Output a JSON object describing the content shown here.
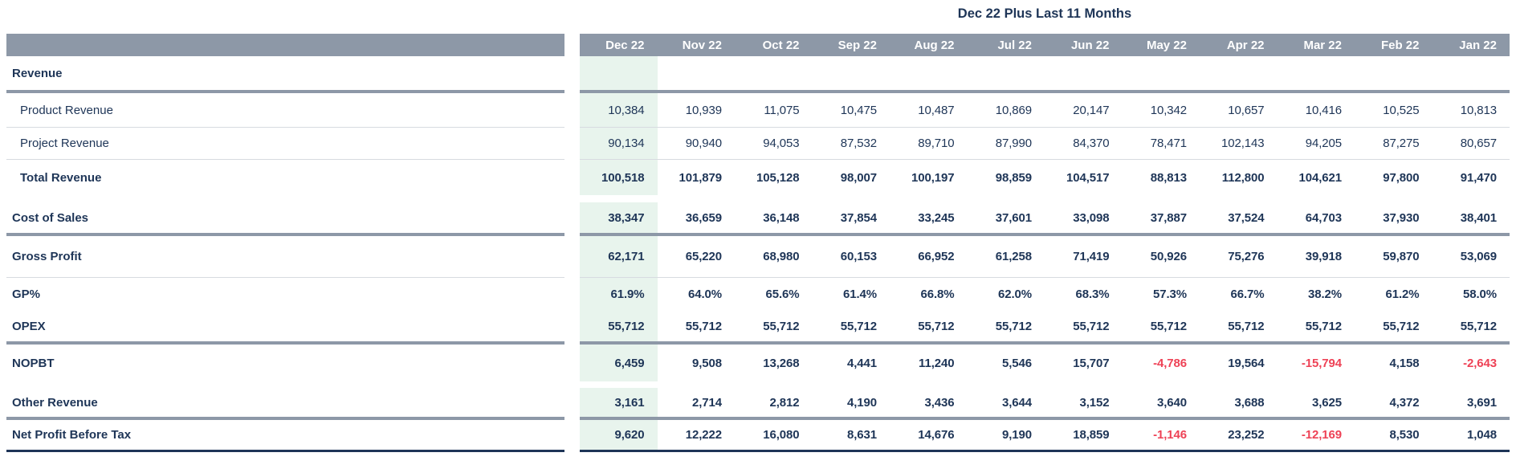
{
  "title": "Dec 22 Plus Last 11 Months",
  "columns": [
    "Dec 22",
    "Nov 22",
    "Oct 22",
    "Sep 22",
    "Aug 22",
    "Jul 22",
    "Jun 22",
    "May 22",
    "Apr 22",
    "Mar 22",
    "Feb 22",
    "Jan 22"
  ],
  "rows": [
    {
      "id": "revenue",
      "label": "Revenue",
      "style": "section",
      "border": "thick",
      "values": [
        "",
        "",
        "",
        "",
        "",
        "",
        "",
        "",
        "",
        "",
        "",
        ""
      ]
    },
    {
      "id": "product-revenue",
      "label": "Product Revenue",
      "style": "detail",
      "border": "thin",
      "values": [
        "10,384",
        "10,939",
        "11,075",
        "10,475",
        "10,487",
        "10,869",
        "20,147",
        "10,342",
        "10,657",
        "10,416",
        "10,525",
        "10,813"
      ]
    },
    {
      "id": "project-revenue",
      "label": "Project Revenue",
      "style": "detail",
      "border": "thin",
      "values": [
        "90,134",
        "90,940",
        "94,053",
        "87,532",
        "89,710",
        "87,990",
        "84,370",
        "78,471",
        "102,143",
        "94,205",
        "87,275",
        "80,657"
      ]
    },
    {
      "id": "total-revenue",
      "label": "Total Revenue",
      "style": "total-indent",
      "border": "none",
      "values": [
        "100,518",
        "101,879",
        "105,128",
        "98,007",
        "100,197",
        "98,859",
        "104,517",
        "88,813",
        "112,800",
        "104,621",
        "97,800",
        "91,470"
      ]
    },
    {
      "id": "cost-of-sales",
      "label": "Cost of Sales",
      "style": "section-values",
      "border": "thick",
      "values": [
        "38,347",
        "36,659",
        "36,148",
        "37,854",
        "33,245",
        "37,601",
        "33,098",
        "37,887",
        "37,524",
        "64,703",
        "37,930",
        "38,401"
      ]
    },
    {
      "id": "gross-profit",
      "label": "Gross Profit",
      "style": "section-values",
      "border": "thin",
      "values": [
        "62,171",
        "65,220",
        "68,980",
        "60,153",
        "66,952",
        "61,258",
        "71,419",
        "50,926",
        "75,276",
        "39,918",
        "59,870",
        "53,069"
      ]
    },
    {
      "id": "gp-percent",
      "label": "GP%",
      "style": "section-values",
      "border": "none",
      "values": [
        "61.9%",
        "64.0%",
        "65.6%",
        "61.4%",
        "66.8%",
        "62.0%",
        "68.3%",
        "57.3%",
        "66.7%",
        "38.2%",
        "61.2%",
        "58.0%"
      ]
    },
    {
      "id": "opex",
      "label": "OPEX",
      "style": "section-values",
      "border": "thick",
      "values": [
        "55,712",
        "55,712",
        "55,712",
        "55,712",
        "55,712",
        "55,712",
        "55,712",
        "55,712",
        "55,712",
        "55,712",
        "55,712",
        "55,712"
      ]
    },
    {
      "id": "nopbt",
      "label": "NOPBT",
      "style": "section-values",
      "border": "none",
      "values": [
        "6,459",
        "9,508",
        "13,268",
        "4,441",
        "11,240",
        "5,546",
        "15,707",
        "-4,786",
        "19,564",
        "-15,794",
        "4,158",
        "-2,643"
      ]
    },
    {
      "id": "other-revenue",
      "label": "Other Revenue",
      "style": "section-values",
      "border": "thick",
      "values": [
        "3,161",
        "2,714",
        "2,812",
        "4,190",
        "3,436",
        "3,644",
        "3,152",
        "3,640",
        "3,688",
        "3,625",
        "4,372",
        "3,691"
      ]
    },
    {
      "id": "net-profit-before-tax",
      "label": "Net Profit Before Tax",
      "style": "section-values",
      "border": "dark",
      "values": [
        "9,620",
        "12,222",
        "16,080",
        "8,631",
        "14,676",
        "9,190",
        "18,859",
        "-1,146",
        "23,252",
        "-12,169",
        "8,530",
        "1,048"
      ]
    }
  ],
  "colors": {
    "text_navy": "#1e3557",
    "header_bg": "#8d98a7",
    "header_text": "#ffffff",
    "highlight_column_bg": "#e8f4ed",
    "negative": "#ee4256",
    "thin_line": "#d7dbe0"
  }
}
